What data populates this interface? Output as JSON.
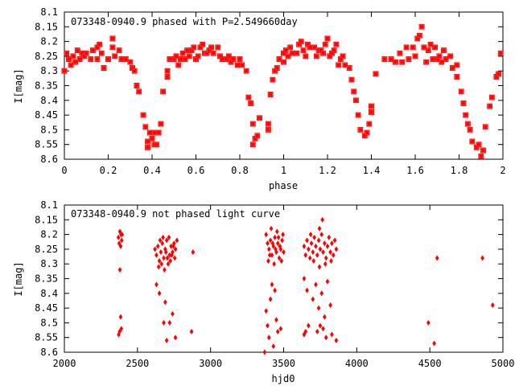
{
  "chart_data": [
    {
      "type": "scatter",
      "title": "073348-0940.9 phased with P=2.549660day",
      "xlabel": "phase",
      "ylabel": "I[mag]",
      "xlim": [
        0,
        2
      ],
      "ylim": [
        8.6,
        8.1
      ],
      "y_reversed": true,
      "x_ticks": [
        "0",
        "0.2",
        "0.4",
        "0.6",
        "0.8",
        "1",
        "1.2",
        "1.4",
        "1.6",
        "1.8",
        "2"
      ],
      "y_ticks": [
        "8.1",
        "8.15",
        "8.2",
        "8.25",
        "8.3",
        "8.35",
        "8.4",
        "8.45",
        "8.5",
        "8.55",
        "8.6"
      ],
      "marker_color": "#ff0000",
      "marker": "square",
      "points": [
        [
          0.0,
          8.3
        ],
        [
          0.01,
          8.24
        ],
        [
          0.02,
          8.26
        ],
        [
          0.03,
          8.28
        ],
        [
          0.04,
          8.25
        ],
        [
          0.05,
          8.27
        ],
        [
          0.06,
          8.23
        ],
        [
          0.07,
          8.26
        ],
        [
          0.08,
          8.24
        ],
        [
          0.09,
          8.25
        ],
        [
          0.1,
          8.24
        ],
        [
          0.12,
          8.26
        ],
        [
          0.13,
          8.23
        ],
        [
          0.15,
          8.22
        ],
        [
          0.15,
          8.26
        ],
        [
          0.16,
          8.21
        ],
        [
          0.17,
          8.24
        ],
        [
          0.18,
          8.29
        ],
        [
          0.2,
          8.26
        ],
        [
          0.22,
          8.19
        ],
        [
          0.22,
          8.22
        ],
        [
          0.23,
          8.25
        ],
        [
          0.25,
          8.23
        ],
        [
          0.26,
          8.26
        ],
        [
          0.28,
          8.26
        ],
        [
          0.3,
          8.27
        ],
        [
          0.31,
          8.29
        ],
        [
          0.32,
          8.3
        ],
        [
          0.33,
          8.35
        ],
        [
          0.34,
          8.37
        ],
        [
          0.36,
          8.45
        ],
        [
          0.37,
          8.49
        ],
        [
          0.38,
          8.54
        ],
        [
          0.38,
          8.56
        ],
        [
          0.39,
          8.51
        ],
        [
          0.4,
          8.53
        ],
        [
          0.41,
          8.55
        ],
        [
          0.41,
          8.51
        ],
        [
          0.42,
          8.55
        ],
        [
          0.43,
          8.51
        ],
        [
          0.44,
          8.48
        ],
        [
          0.45,
          8.37
        ],
        [
          0.47,
          8.32
        ],
        [
          0.47,
          8.3
        ],
        [
          0.48,
          8.26
        ],
        [
          0.5,
          8.26
        ],
        [
          0.51,
          8.25
        ],
        [
          0.52,
          8.28
        ],
        [
          0.53,
          8.26
        ],
        [
          0.54,
          8.24
        ],
        [
          0.55,
          8.26
        ],
        [
          0.56,
          8.23
        ],
        [
          0.57,
          8.25
        ],
        [
          0.58,
          8.23
        ],
        [
          0.59,
          8.22
        ],
        [
          0.6,
          8.26
        ],
        [
          0.61,
          8.25
        ],
        [
          0.62,
          8.22
        ],
        [
          0.63,
          8.21
        ],
        [
          0.64,
          8.24
        ],
        [
          0.65,
          8.24
        ],
        [
          0.66,
          8.23
        ],
        [
          0.67,
          8.22
        ],
        [
          0.68,
          8.24
        ],
        [
          0.7,
          8.22
        ],
        [
          0.71,
          8.25
        ],
        [
          0.72,
          8.26
        ],
        [
          0.74,
          8.26
        ],
        [
          0.75,
          8.25
        ],
        [
          0.76,
          8.27
        ],
        [
          0.77,
          8.26
        ],
        [
          0.79,
          8.28
        ],
        [
          0.8,
          8.26
        ],
        [
          0.81,
          8.28
        ],
        [
          0.83,
          8.3
        ],
        [
          0.84,
          8.39
        ],
        [
          0.85,
          8.41
        ],
        [
          0.86,
          8.48
        ],
        [
          0.86,
          8.55
        ],
        [
          0.87,
          8.53
        ],
        [
          0.88,
          8.52
        ],
        [
          0.89,
          8.46
        ],
        [
          0.93,
          8.5
        ],
        [
          0.93,
          8.48
        ],
        [
          0.94,
          8.38
        ],
        [
          0.95,
          8.33
        ],
        [
          0.96,
          8.3
        ],
        [
          0.97,
          8.29
        ],
        [
          0.98,
          8.26
        ],
        [
          1.0,
          8.27
        ],
        [
          1.0,
          8.24
        ],
        [
          1.01,
          8.23
        ],
        [
          1.02,
          8.25
        ],
        [
          1.03,
          8.22
        ],
        [
          1.04,
          8.24
        ],
        [
          1.06,
          8.24
        ],
        [
          1.07,
          8.21
        ],
        [
          1.08,
          8.2
        ],
        [
          1.09,
          8.23
        ],
        [
          1.1,
          8.25
        ],
        [
          1.11,
          8.21
        ],
        [
          1.12,
          8.22
        ],
        [
          1.14,
          8.22
        ],
        [
          1.15,
          8.25
        ],
        [
          1.16,
          8.23
        ],
        [
          1.17,
          8.23
        ],
        [
          1.18,
          8.24
        ],
        [
          1.19,
          8.21
        ],
        [
          1.2,
          8.19
        ],
        [
          1.21,
          8.25
        ],
        [
          1.22,
          8.24
        ],
        [
          1.23,
          8.23
        ],
        [
          1.24,
          8.21
        ],
        [
          1.25,
          8.28
        ],
        [
          1.26,
          8.26
        ],
        [
          1.27,
          8.25
        ],
        [
          1.28,
          8.28
        ],
        [
          1.3,
          8.29
        ],
        [
          1.31,
          8.33
        ],
        [
          1.32,
          8.37
        ],
        [
          1.33,
          8.4
        ],
        [
          1.34,
          8.45
        ],
        [
          1.35,
          8.5
        ],
        [
          1.37,
          8.52
        ],
        [
          1.38,
          8.51
        ],
        [
          1.39,
          8.48
        ],
        [
          1.4,
          8.44
        ],
        [
          1.4,
          8.42
        ],
        [
          1.42,
          8.31
        ],
        [
          1.46,
          8.26
        ],
        [
          1.49,
          8.26
        ],
        [
          1.51,
          8.27
        ],
        [
          1.53,
          8.24
        ],
        [
          1.54,
          8.27
        ],
        [
          1.56,
          8.22
        ],
        [
          1.57,
          8.26
        ],
        [
          1.59,
          8.22
        ],
        [
          1.6,
          8.25
        ],
        [
          1.61,
          8.19
        ],
        [
          1.62,
          8.18
        ],
        [
          1.63,
          8.15
        ],
        [
          1.64,
          8.22
        ],
        [
          1.65,
          8.27
        ],
        [
          1.66,
          8.23
        ],
        [
          1.67,
          8.21
        ],
        [
          1.68,
          8.26
        ],
        [
          1.69,
          8.22
        ],
        [
          1.7,
          8.26
        ],
        [
          1.71,
          8.25
        ],
        [
          1.72,
          8.27
        ],
        [
          1.73,
          8.23
        ],
        [
          1.74,
          8.26
        ],
        [
          1.76,
          8.25
        ],
        [
          1.77,
          8.29
        ],
        [
          1.79,
          8.28
        ],
        [
          1.79,
          8.32
        ],
        [
          1.81,
          8.37
        ],
        [
          1.82,
          8.41
        ],
        [
          1.83,
          8.45
        ],
        [
          1.84,
          8.48
        ],
        [
          1.85,
          8.5
        ],
        [
          1.86,
          8.54
        ],
        [
          1.88,
          8.56
        ],
        [
          1.89,
          8.55
        ],
        [
          1.9,
          8.59
        ],
        [
          1.91,
          8.57
        ],
        [
          1.92,
          8.49
        ],
        [
          1.94,
          8.42
        ],
        [
          1.95,
          8.39
        ],
        [
          1.97,
          8.32
        ],
        [
          1.98,
          8.31
        ],
        [
          1.99,
          8.24
        ]
      ]
    },
    {
      "type": "scatter",
      "title": "073348-0940.9 not phased light curve",
      "xlabel": "hjd0",
      "ylabel": "I[mag]",
      "xlim": [
        2000,
        5000
      ],
      "ylim": [
        8.6,
        8.1
      ],
      "y_reversed": true,
      "x_ticks": [
        "2000",
        "2500",
        "3000",
        "3500",
        "4000",
        "4500",
        "5000"
      ],
      "y_ticks": [
        "8.1",
        "8.15",
        "8.2",
        "8.25",
        "8.3",
        "8.35",
        "8.4",
        "8.45",
        "8.5",
        "8.55",
        "8.6"
      ],
      "marker_color": "#ff0000",
      "marker": "diamond",
      "points": [
        [
          2370,
          8.21
        ],
        [
          2375,
          8.23
        ],
        [
          2380,
          8.19
        ],
        [
          2385,
          8.24
        ],
        [
          2388,
          8.2
        ],
        [
          2392,
          8.22
        ],
        [
          2380,
          8.32
        ],
        [
          2385,
          8.48
        ],
        [
          2378,
          8.53
        ],
        [
          2390,
          8.52
        ],
        [
          2372,
          8.54
        ],
        [
          2395,
          8.2
        ],
        [
          2620,
          8.25
        ],
        [
          2630,
          8.27
        ],
        [
          2640,
          8.24
        ],
        [
          2650,
          8.29
        ],
        [
          2660,
          8.26
        ],
        [
          2670,
          8.23
        ],
        [
          2680,
          8.28
        ],
        [
          2690,
          8.25
        ],
        [
          2700,
          8.22
        ],
        [
          2710,
          8.3
        ],
        [
          2720,
          8.27
        ],
        [
          2730,
          8.24
        ],
        [
          2740,
          8.26
        ],
        [
          2750,
          8.23
        ],
        [
          2760,
          8.25
        ],
        [
          2770,
          8.22
        ],
        [
          2645,
          8.31
        ],
        [
          2665,
          8.3
        ],
        [
          2685,
          8.32
        ],
        [
          2705,
          8.28
        ],
        [
          2725,
          8.29
        ],
        [
          2715,
          8.21
        ],
        [
          2735,
          8.27
        ],
        [
          2655,
          8.22
        ],
        [
          2695,
          8.26
        ],
        [
          2745,
          8.24
        ],
        [
          2675,
          8.21
        ],
        [
          2755,
          8.28
        ],
        [
          2630,
          8.37
        ],
        [
          2650,
          8.4
        ],
        [
          2690,
          8.43
        ],
        [
          2680,
          8.5
        ],
        [
          2720,
          8.5
        ],
        [
          2700,
          8.56
        ],
        [
          2760,
          8.55
        ],
        [
          2740,
          8.47
        ],
        [
          2880,
          8.26
        ],
        [
          2870,
          8.53
        ],
        [
          3380,
          8.2
        ],
        [
          3390,
          8.23
        ],
        [
          3400,
          8.25
        ],
        [
          3410,
          8.22
        ],
        [
          3420,
          8.27
        ],
        [
          3430,
          8.24
        ],
        [
          3440,
          8.21
        ],
        [
          3450,
          8.26
        ],
        [
          3460,
          8.23
        ],
        [
          3470,
          8.28
        ],
        [
          3480,
          8.25
        ],
        [
          3490,
          8.22
        ],
        [
          3500,
          8.26
        ],
        [
          3395,
          8.29
        ],
        [
          3415,
          8.18
        ],
        [
          3435,
          8.3
        ],
        [
          3455,
          8.19
        ],
        [
          3475,
          8.24
        ],
        [
          3495,
          8.2
        ],
        [
          3405,
          8.27
        ],
        [
          3445,
          8.25
        ],
        [
          3465,
          8.21
        ],
        [
          3485,
          8.29
        ],
        [
          3425,
          8.23
        ],
        [
          3380,
          8.46
        ],
        [
          3390,
          8.51
        ],
        [
          3400,
          8.55
        ],
        [
          3410,
          8.42
        ],
        [
          3420,
          8.37
        ],
        [
          3440,
          8.39
        ],
        [
          3450,
          8.49
        ],
        [
          3460,
          8.53
        ],
        [
          3480,
          8.52
        ],
        [
          3370,
          8.6
        ],
        [
          3430,
          8.58
        ],
        [
          3640,
          8.24
        ],
        [
          3650,
          8.27
        ],
        [
          3660,
          8.22
        ],
        [
          3670,
          8.25
        ],
        [
          3680,
          8.28
        ],
        [
          3690,
          8.23
        ],
        [
          3700,
          8.26
        ],
        [
          3710,
          8.21
        ],
        [
          3720,
          8.24
        ],
        [
          3730,
          8.27
        ],
        [
          3740,
          8.22
        ],
        [
          3750,
          8.25
        ],
        [
          3760,
          8.2
        ],
        [
          3770,
          8.26
        ],
        [
          3780,
          8.23
        ],
        [
          3790,
          8.28
        ],
        [
          3800,
          8.24
        ],
        [
          3810,
          8.21
        ],
        [
          3820,
          8.26
        ],
        [
          3830,
          8.23
        ],
        [
          3840,
          8.27
        ],
        [
          3850,
          8.22
        ],
        [
          3860,
          8.25
        ],
        [
          3765,
          8.15
        ],
        [
          3745,
          8.18
        ],
        [
          3705,
          8.29
        ],
        [
          3785,
          8.3
        ],
        [
          3825,
          8.29
        ],
        [
          3685,
          8.2
        ],
        [
          3745,
          8.31
        ],
        [
          3640,
          8.35
        ],
        [
          3660,
          8.39
        ],
        [
          3700,
          8.42
        ],
        [
          3720,
          8.37
        ],
        [
          3740,
          8.45
        ],
        [
          3760,
          8.4
        ],
        [
          3780,
          8.48
        ],
        [
          3800,
          8.36
        ],
        [
          3820,
          8.44
        ],
        [
          3650,
          8.53
        ],
        [
          3670,
          8.51
        ],
        [
          3730,
          8.53
        ],
        [
          3750,
          8.51
        ],
        [
          3770,
          8.52
        ],
        [
          3790,
          8.55
        ],
        [
          3830,
          8.54
        ],
        [
          3860,
          8.56
        ],
        [
          3640,
          8.54
        ],
        [
          4490,
          8.5
        ],
        [
          4530,
          8.57
        ],
        [
          4550,
          8.28
        ],
        [
          4860,
          8.28
        ],
        [
          4930,
          8.44
        ]
      ]
    }
  ]
}
